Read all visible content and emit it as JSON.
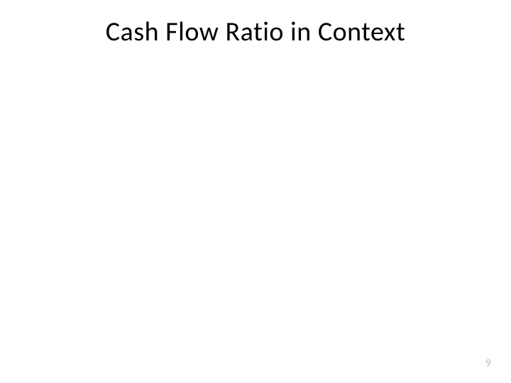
{
  "slide": {
    "title": "Cash Flow Ratio in Context",
    "page_number": "9",
    "background_color": "#ffffff",
    "title_color": "#000000",
    "title_fontsize": 38,
    "page_number_color": "#bfbfbf",
    "page_number_fontsize": 16
  }
}
